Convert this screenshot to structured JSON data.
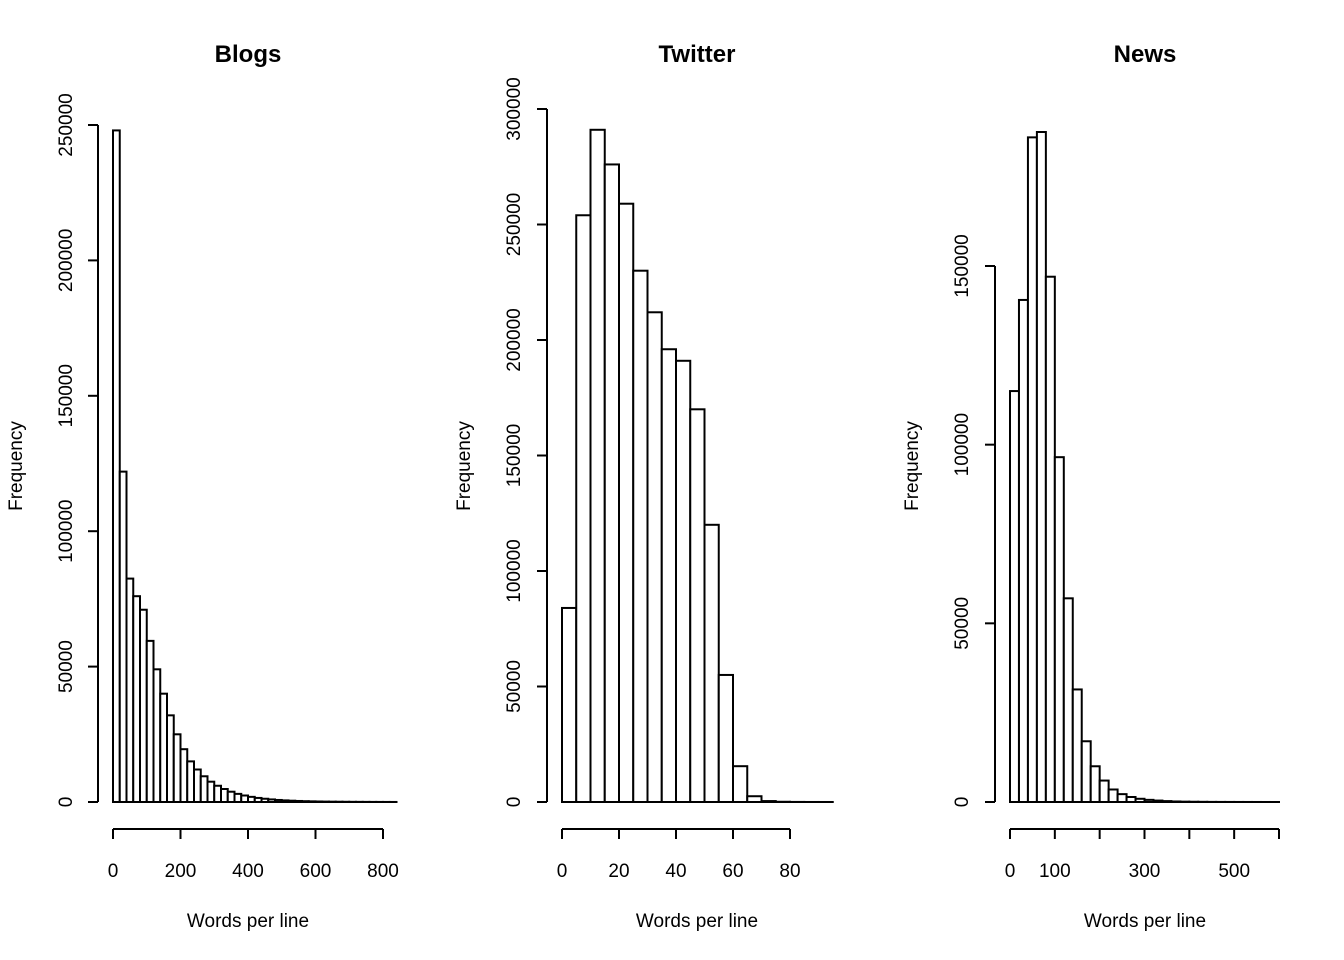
{
  "chart_data": [
    {
      "type": "histogram",
      "title": "Blogs",
      "xlabel": "Words per line",
      "ylabel": "Frequency",
      "bin_width": 20,
      "x_start": 0,
      "xlim": [
        0,
        840
      ],
      "ylim": [
        0,
        250000
      ],
      "x_ticks": [
        0,
        200,
        400,
        600,
        800
      ],
      "x_tick_labels": [
        "0",
        "200",
        "400",
        "600",
        "800"
      ],
      "y_ticks": [
        0,
        50000,
        100000,
        150000,
        200000,
        250000
      ],
      "y_tick_labels": [
        "0",
        "50000",
        "100000",
        "150000",
        "200000",
        "250000"
      ],
      "values": [
        248000,
        122000,
        82500,
        76000,
        71000,
        59500,
        49000,
        40000,
        32000,
        25000,
        19500,
        15000,
        12000,
        9500,
        7500,
        6000,
        4800,
        3800,
        3000,
        2400,
        1900,
        1500,
        1200,
        950,
        750,
        600,
        480,
        380,
        300,
        240,
        190,
        150,
        120,
        100,
        80,
        60,
        50,
        40,
        30,
        25,
        20,
        15
      ]
    },
    {
      "type": "histogram",
      "title": "Twitter",
      "xlabel": "Words per line",
      "ylabel": "Frequency",
      "bin_width": 5,
      "x_start": 0,
      "xlim": [
        0,
        95
      ],
      "ylim": [
        0,
        300000
      ],
      "x_ticks": [
        0,
        20,
        40,
        60,
        80
      ],
      "x_tick_labels": [
        "0",
        "20",
        "40",
        "60",
        "80"
      ],
      "y_ticks": [
        0,
        50000,
        100000,
        150000,
        200000,
        250000,
        300000
      ],
      "y_tick_labels": [
        "0",
        "50000",
        "100000",
        "150000",
        "200000",
        "250000",
        "300000"
      ],
      "values": [
        84000,
        254000,
        291000,
        276000,
        259000,
        230000,
        212000,
        196000,
        191000,
        170000,
        120000,
        55000,
        15500,
        2500,
        400,
        100,
        30,
        10,
        5
      ]
    },
    {
      "type": "histogram",
      "title": "News",
      "xlabel": "Words per line",
      "ylabel": "Frequency",
      "bin_width": 20,
      "x_start": 0,
      "xlim": [
        0,
        600
      ],
      "ylim": [
        0,
        180000
      ],
      "x_ticks": [
        0,
        100,
        200,
        300,
        400,
        500,
        600
      ],
      "x_tick_labels": [
        "0",
        "100",
        "",
        "300",
        "",
        "500",
        ""
      ],
      "y_ticks": [
        0,
        50000,
        100000,
        150000
      ],
      "y_tick_labels": [
        "0",
        "50000",
        "100000",
        "150000"
      ],
      "values": [
        115000,
        140500,
        186000,
        187500,
        147000,
        96500,
        57000,
        31500,
        17000,
        10000,
        6000,
        3500,
        2200,
        1400,
        900,
        600,
        400,
        250,
        150,
        100,
        70,
        50,
        30,
        20,
        15,
        10,
        8,
        5,
        3,
        2
      ]
    }
  ]
}
